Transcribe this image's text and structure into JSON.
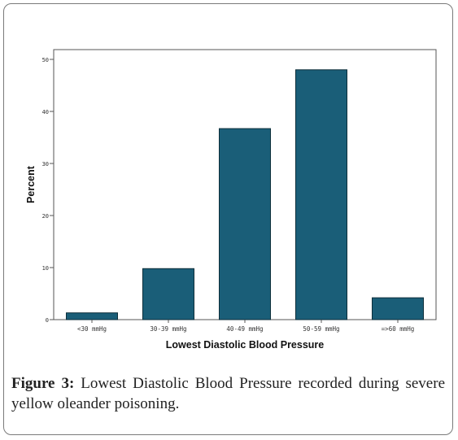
{
  "chart_data": {
    "type": "bar",
    "categories": [
      "<30 mmHg",
      "30-39 mmHg",
      "40-49 mmHg",
      "50-59 mmHg",
      "=>60 mmHg"
    ],
    "values": [
      1.3,
      9.8,
      36.7,
      48.0,
      4.2
    ],
    "xlabel": "Lowest Diastolic Blood Pressure",
    "ylabel": "Percent",
    "ylim": [
      0,
      50
    ],
    "yticks": [
      "0",
      "10",
      "20",
      "30",
      "40",
      "50"
    ],
    "grid": false,
    "bar_color": "#1a5e78",
    "bar_edge_color": "#0d2e3a"
  },
  "caption": {
    "label": "Figure 3:",
    "text": " Lowest Diastolic Blood Pressure recorded during severe yellow oleander poisoning."
  }
}
